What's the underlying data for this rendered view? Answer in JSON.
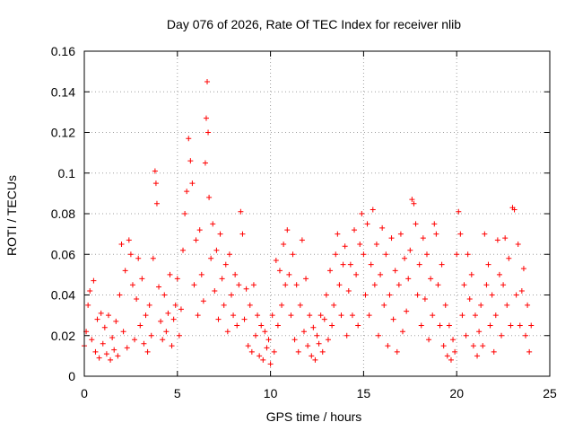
{
  "chart_data": {
    "type": "scatter",
    "title": "Day 076 of 2026, Rate Of TEC Index for receiver nlib",
    "xlabel": "GPS time / hours",
    "ylabel": "ROTI / TECUs",
    "xlim": [
      0,
      25
    ],
    "ylim": [
      0,
      0.16
    ],
    "xticks": [
      0,
      5,
      10,
      15,
      20,
      25
    ],
    "xtick_labels": [
      "0",
      "5",
      "10",
      "15",
      "20",
      "25"
    ],
    "yticks": [
      0,
      0.02,
      0.04,
      0.06,
      0.08,
      0.1,
      0.12,
      0.14,
      0.16
    ],
    "ytick_labels": [
      "0",
      "0.02",
      "0.04",
      "0.06",
      "0.08",
      "0.1",
      "0.12",
      "0.14",
      "0.16"
    ],
    "grid": true,
    "marker": "+",
    "color": "#ff0000",
    "series": [
      {
        "name": "ROTI",
        "points": [
          [
            0.0,
            0.015
          ],
          [
            0.1,
            0.022
          ],
          [
            0.2,
            0.035
          ],
          [
            0.3,
            0.042
          ],
          [
            0.4,
            0.018
          ],
          [
            0.5,
            0.047
          ],
          [
            0.6,
            0.012
          ],
          [
            0.7,
            0.028
          ],
          [
            0.8,
            0.009
          ],
          [
            0.9,
            0.031
          ],
          [
            1.0,
            0.016
          ],
          [
            1.1,
            0.024
          ],
          [
            1.2,
            0.011
          ],
          [
            1.3,
            0.03
          ],
          [
            1.4,
            0.008
          ],
          [
            1.5,
            0.019
          ],
          [
            1.6,
            0.013
          ],
          [
            1.7,
            0.027
          ],
          [
            1.8,
            0.01
          ],
          [
            1.9,
            0.04
          ],
          [
            2.0,
            0.065
          ],
          [
            2.1,
            0.022
          ],
          [
            2.2,
            0.052
          ],
          [
            2.3,
            0.014
          ],
          [
            2.4,
            0.067
          ],
          [
            2.5,
            0.06
          ],
          [
            2.6,
            0.045
          ],
          [
            2.7,
            0.018
          ],
          [
            2.8,
            0.038
          ],
          [
            2.9,
            0.058
          ],
          [
            3.0,
            0.025
          ],
          [
            3.1,
            0.048
          ],
          [
            3.2,
            0.016
          ],
          [
            3.3,
            0.03
          ],
          [
            3.4,
            0.012
          ],
          [
            3.5,
            0.035
          ],
          [
            3.6,
            0.02
          ],
          [
            3.7,
            0.058
          ],
          [
            3.8,
            0.101
          ],
          [
            3.85,
            0.095
          ],
          [
            3.9,
            0.085
          ],
          [
            4.0,
            0.044
          ],
          [
            4.1,
            0.027
          ],
          [
            4.2,
            0.018
          ],
          [
            4.3,
            0.04
          ],
          [
            4.4,
            0.022
          ],
          [
            4.5,
            0.031
          ],
          [
            4.6,
            0.05
          ],
          [
            4.7,
            0.015
          ],
          [
            4.8,
            0.028
          ],
          [
            4.9,
            0.035
          ],
          [
            5.0,
            0.048
          ],
          [
            5.1,
            0.02
          ],
          [
            5.2,
            0.033
          ],
          [
            5.3,
            0.062
          ],
          [
            5.4,
            0.08
          ],
          [
            5.5,
            0.091
          ],
          [
            5.6,
            0.117
          ],
          [
            5.7,
            0.106
          ],
          [
            5.8,
            0.095
          ],
          [
            5.9,
            0.045
          ],
          [
            6.0,
            0.067
          ],
          [
            6.1,
            0.03
          ],
          [
            6.2,
            0.072
          ],
          [
            6.3,
            0.05
          ],
          [
            6.4,
            0.037
          ],
          [
            6.5,
            0.105
          ],
          [
            6.55,
            0.127
          ],
          [
            6.6,
            0.145
          ],
          [
            6.65,
            0.12
          ],
          [
            6.7,
            0.088
          ],
          [
            6.8,
            0.058
          ],
          [
            6.9,
            0.075
          ],
          [
            7.0,
            0.042
          ],
          [
            7.1,
            0.062
          ],
          [
            7.2,
            0.028
          ],
          [
            7.3,
            0.07
          ],
          [
            7.4,
            0.048
          ],
          [
            7.5,
            0.035
          ],
          [
            7.6,
            0.055
          ],
          [
            7.7,
            0.022
          ],
          [
            7.8,
            0.06
          ],
          [
            7.9,
            0.04
          ],
          [
            8.0,
            0.03
          ],
          [
            8.1,
            0.05
          ],
          [
            8.2,
            0.025
          ],
          [
            8.3,
            0.045
          ],
          [
            8.4,
            0.081
          ],
          [
            8.5,
            0.07
          ],
          [
            8.6,
            0.028
          ],
          [
            8.7,
            0.043
          ],
          [
            8.8,
            0.015
          ],
          [
            8.9,
            0.035
          ],
          [
            9.0,
            0.012
          ],
          [
            9.1,
            0.045
          ],
          [
            9.2,
            0.02
          ],
          [
            9.3,
            0.03
          ],
          [
            9.4,
            0.01
          ],
          [
            9.5,
            0.025
          ],
          [
            9.6,
            0.008
          ],
          [
            9.7,
            0.022
          ],
          [
            9.8,
            0.014
          ],
          [
            9.9,
            0.018
          ],
          [
            10.0,
            0.006
          ],
          [
            10.1,
            0.03
          ],
          [
            10.2,
            0.012
          ],
          [
            10.3,
            0.057
          ],
          [
            10.4,
            0.025
          ],
          [
            10.5,
            0.052
          ],
          [
            10.6,
            0.035
          ],
          [
            10.7,
            0.065
          ],
          [
            10.8,
            0.045
          ],
          [
            10.9,
            0.072
          ],
          [
            11.0,
            0.05
          ],
          [
            11.1,
            0.03
          ],
          [
            11.2,
            0.06
          ],
          [
            11.3,
            0.018
          ],
          [
            11.4,
            0.045
          ],
          [
            11.5,
            0.012
          ],
          [
            11.6,
            0.035
          ],
          [
            11.7,
            0.067
          ],
          [
            11.8,
            0.022
          ],
          [
            11.9,
            0.048
          ],
          [
            12.0,
            0.015
          ],
          [
            12.1,
            0.03
          ],
          [
            12.2,
            0.01
          ],
          [
            12.3,
            0.024
          ],
          [
            12.4,
            0.008
          ],
          [
            12.5,
            0.02
          ],
          [
            12.6,
            0.016
          ],
          [
            12.7,
            0.03
          ],
          [
            12.8,
            0.012
          ],
          [
            12.9,
            0.028
          ],
          [
            13.0,
            0.04
          ],
          [
            13.1,
            0.018
          ],
          [
            13.2,
            0.052
          ],
          [
            13.3,
            0.025
          ],
          [
            13.4,
            0.035
          ],
          [
            13.5,
            0.06
          ],
          [
            13.6,
            0.07
          ],
          [
            13.7,
            0.045
          ],
          [
            13.8,
            0.03
          ],
          [
            13.9,
            0.055
          ],
          [
            14.0,
            0.064
          ],
          [
            14.1,
            0.02
          ],
          [
            14.2,
            0.042
          ],
          [
            14.3,
            0.055
          ],
          [
            14.4,
            0.03
          ],
          [
            14.5,
            0.072
          ],
          [
            14.6,
            0.05
          ],
          [
            14.7,
            0.025
          ],
          [
            14.8,
            0.065
          ],
          [
            14.9,
            0.08
          ],
          [
            15.0,
            0.06
          ],
          [
            15.1,
            0.04
          ],
          [
            15.2,
            0.075
          ],
          [
            15.3,
            0.03
          ],
          [
            15.4,
            0.055
          ],
          [
            15.5,
            0.082
          ],
          [
            15.6,
            0.045
          ],
          [
            15.7,
            0.065
          ],
          [
            15.8,
            0.02
          ],
          [
            15.9,
            0.05
          ],
          [
            16.0,
            0.073
          ],
          [
            16.1,
            0.035
          ],
          [
            16.2,
            0.06
          ],
          [
            16.3,
            0.015
          ],
          [
            16.4,
            0.04
          ],
          [
            16.5,
            0.068
          ],
          [
            16.6,
            0.028
          ],
          [
            16.7,
            0.052
          ],
          [
            16.8,
            0.012
          ],
          [
            16.9,
            0.045
          ],
          [
            17.0,
            0.07
          ],
          [
            17.1,
            0.022
          ],
          [
            17.2,
            0.058
          ],
          [
            17.3,
            0.032
          ],
          [
            17.4,
            0.048
          ],
          [
            17.5,
            0.062
          ],
          [
            17.6,
            0.087
          ],
          [
            17.7,
            0.085
          ],
          [
            17.8,
            0.075
          ],
          [
            17.9,
            0.04
          ],
          [
            18.0,
            0.055
          ],
          [
            18.1,
            0.025
          ],
          [
            18.2,
            0.068
          ],
          [
            18.3,
            0.038
          ],
          [
            18.4,
            0.06
          ],
          [
            18.5,
            0.018
          ],
          [
            18.6,
            0.048
          ],
          [
            18.7,
            0.03
          ],
          [
            18.8,
            0.075
          ],
          [
            18.9,
            0.07
          ],
          [
            19.0,
            0.045
          ],
          [
            19.1,
            0.025
          ],
          [
            19.2,
            0.055
          ],
          [
            19.3,
            0.015
          ],
          [
            19.4,
            0.035
          ],
          [
            19.5,
            0.01
          ],
          [
            19.6,
            0.025
          ],
          [
            19.7,
            0.008
          ],
          [
            19.8,
            0.018
          ],
          [
            19.9,
            0.012
          ],
          [
            20.0,
            0.06
          ],
          [
            20.1,
            0.081
          ],
          [
            20.2,
            0.07
          ],
          [
            20.3,
            0.03
          ],
          [
            20.4,
            0.045
          ],
          [
            20.5,
            0.02
          ],
          [
            20.6,
            0.06
          ],
          [
            20.7,
            0.038
          ],
          [
            20.8,
            0.05
          ],
          [
            20.9,
            0.015
          ],
          [
            21.0,
            0.03
          ],
          [
            21.1,
            0.01
          ],
          [
            21.2,
            0.022
          ],
          [
            21.3,
            0.035
          ],
          [
            21.4,
            0.015
          ],
          [
            21.5,
            0.07
          ],
          [
            21.6,
            0.045
          ],
          [
            21.7,
            0.055
          ],
          [
            21.8,
            0.025
          ],
          [
            21.9,
            0.04
          ],
          [
            22.0,
            0.012
          ],
          [
            22.1,
            0.03
          ],
          [
            22.2,
            0.067
          ],
          [
            22.3,
            0.05
          ],
          [
            22.4,
            0.02
          ],
          [
            22.5,
            0.045
          ],
          [
            22.6,
            0.068
          ],
          [
            22.7,
            0.035
          ],
          [
            22.8,
            0.058
          ],
          [
            22.9,
            0.025
          ],
          [
            23.0,
            0.083
          ],
          [
            23.1,
            0.082
          ],
          [
            23.2,
            0.04
          ],
          [
            23.3,
            0.065
          ],
          [
            23.4,
            0.025
          ],
          [
            23.5,
            0.042
          ],
          [
            23.6,
            0.053
          ],
          [
            23.7,
            0.02
          ],
          [
            23.8,
            0.035
          ],
          [
            23.9,
            0.012
          ],
          [
            24.0,
            0.025
          ]
        ]
      }
    ]
  }
}
